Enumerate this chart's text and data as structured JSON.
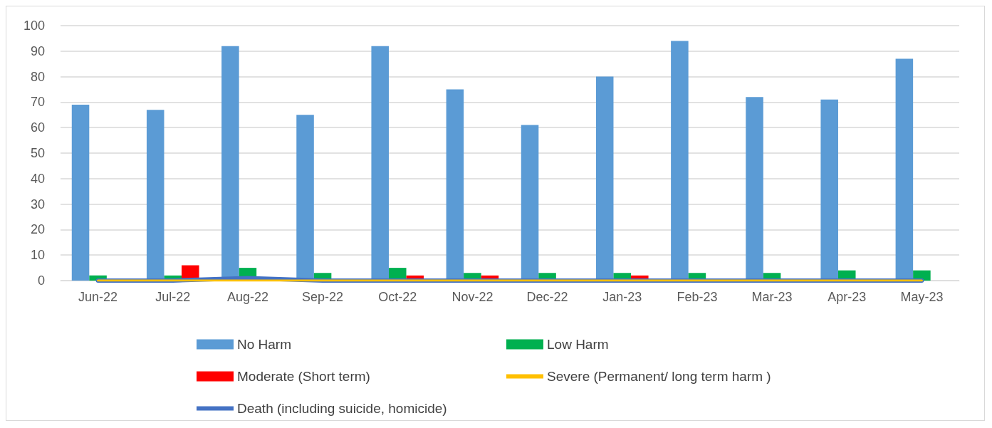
{
  "chart_data": {
    "type": "bar",
    "categories": [
      "Jun-22",
      "Jul-22",
      "Aug-22",
      "Sep-22",
      "Oct-22",
      "Nov-22",
      "Dec-22",
      "Jan-23",
      "Feb-23",
      "Mar-23",
      "Apr-23",
      "May-23"
    ],
    "series": [
      {
        "name": "No Harm",
        "color": "#5b9bd5",
        "values": [
          69,
          67,
          92,
          65,
          92,
          75,
          61,
          80,
          94,
          72,
          71,
          87
        ]
      },
      {
        "name": "Low Harm",
        "color": "#00b050",
        "values": [
          2,
          2,
          5,
          3,
          5,
          3,
          3,
          3,
          3,
          3,
          4,
          4
        ]
      },
      {
        "name": "Moderate (Short term)",
        "color": "#ff0000",
        "values": [
          0,
          6,
          0,
          0,
          2,
          2,
          0,
          2,
          0,
          0,
          0,
          0
        ]
      },
      {
        "name": "Severe (Permanent/ long term harm )",
        "type": "line",
        "color": "#ffc000",
        "values": [
          0,
          0,
          0,
          0,
          0,
          0,
          0,
          0,
          0,
          0,
          0,
          0
        ]
      },
      {
        "name": "Death (including suicide, homicide)",
        "type": "line",
        "color": "#4472c4",
        "values": [
          0,
          0,
          1,
          0,
          0,
          0,
          0,
          0,
          0,
          0,
          0,
          0
        ]
      }
    ],
    "ylim": [
      0,
      100
    ],
    "yticks": [
      0,
      10,
      20,
      30,
      40,
      50,
      60,
      70,
      80,
      90,
      100
    ],
    "grid": "y",
    "legend": "bottom",
    "marker": "none"
  }
}
